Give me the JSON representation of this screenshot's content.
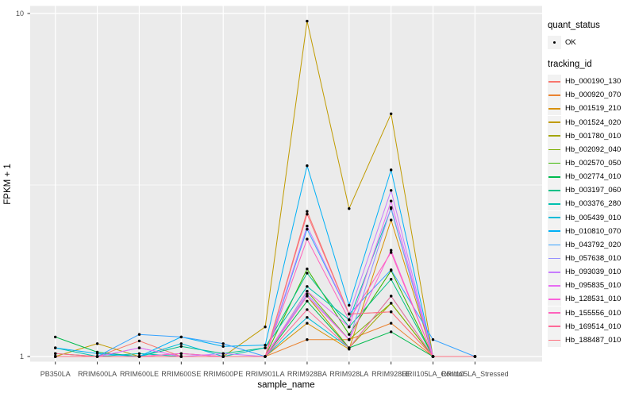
{
  "chart_data": {
    "type": "line",
    "title": "",
    "xlabel": "sample_name",
    "ylabel": "FPKM + 1",
    "yscale": "log10",
    "ylim": [
      1,
      10
    ],
    "y_ticks": [
      {
        "value": 10,
        "label": "10"
      },
      {
        "value": 1,
        "label": "1"
      }
    ],
    "y_minor_ticks": [
      3.1623
    ],
    "grid": "on",
    "legend": {
      "position": "right",
      "quant_status_title": "quant_status",
      "quant_status_items": [
        {
          "label": "OK",
          "symbol": "point"
        }
      ],
      "tracking_id_title": "tracking_id"
    },
    "style": {
      "panel_bg": "#EBEBEB",
      "grid_color": "#FFFFFF",
      "tick_label_color": "#4D4D4D",
      "axis_title_color": "#000000",
      "point_color": "#000000",
      "legend_key_bg": "#F2F2F2"
    },
    "categories": [
      "PB350LA",
      "RRIM600LA",
      "RRIM600LE",
      "RRIM600SE",
      "RRIM600PE",
      "RRIM901LA",
      "RRIM928BA",
      "RRIM928LA",
      "RRIM928LE",
      "RRII105LA_Control",
      "RRII105LA_Stressed"
    ],
    "series": [
      {
        "name": "Hb_000190_130",
        "color": "#F8766D",
        "values": [
          1.0,
          1.0,
          1.11,
          1.0,
          1.0,
          1.0,
          2.65,
          1.33,
          1.35,
          1.0,
          1.0
        ]
      },
      {
        "name": "Hb_000920_070",
        "color": "#EA8331",
        "values": [
          1.0,
          1.0,
          1.0,
          1.0,
          1.0,
          1.0,
          1.12,
          1.12,
          1.25,
          1.0,
          1.0
        ]
      },
      {
        "name": "Hb_001519_210",
        "color": "#D89000",
        "values": [
          1.0,
          1.0,
          1.0,
          1.0,
          1.0,
          1.0,
          1.25,
          1.05,
          2.5,
          1.0,
          1.0
        ]
      },
      {
        "name": "Hb_001524_020",
        "color": "#C09B00",
        "values": [
          1.0,
          1.09,
          1.0,
          1.0,
          1.0,
          1.22,
          9.5,
          2.7,
          5.1,
          1.0,
          1.0
        ]
      },
      {
        "name": "Hb_001780_010",
        "color": "#A3A500",
        "values": [
          1.0,
          1.0,
          1.0,
          1.0,
          1.0,
          1.0,
          1.5,
          1.06,
          1.43,
          1.0,
          1.0
        ]
      },
      {
        "name": "Hb_002092_040",
        "color": "#7CAE00",
        "values": [
          1.0,
          1.0,
          1.0,
          1.02,
          1.0,
          1.0,
          1.55,
          1.12,
          1.43,
          1.0,
          1.0
        ]
      },
      {
        "name": "Hb_002570_050",
        "color": "#39B600",
        "values": [
          1.02,
          1.0,
          1.0,
          1.0,
          1.0,
          1.0,
          1.8,
          1.16,
          1.78,
          1.0,
          1.0
        ]
      },
      {
        "name": "Hb_002774_010",
        "color": "#00BB4E",
        "values": [
          1.14,
          1.03,
          1.0,
          1.0,
          1.0,
          1.0,
          1.45,
          1.06,
          1.18,
          1.0,
          1.0
        ]
      },
      {
        "name": "Hb_003197_060",
        "color": "#00C087",
        "values": [
          1.0,
          1.0,
          1.0,
          1.07,
          1.02,
          1.06,
          1.75,
          1.22,
          1.68,
          1.0,
          1.0
        ]
      },
      {
        "name": "Hb_003376_280",
        "color": "#00C0AF",
        "values": [
          1.06,
          1.0,
          1.02,
          1.0,
          1.0,
          1.06,
          1.6,
          1.28,
          2.7,
          1.0,
          1.0
        ]
      },
      {
        "name": "Hb_005439_010",
        "color": "#00BCD8",
        "values": [
          1.0,
          1.0,
          1.0,
          1.09,
          1.0,
          1.0,
          1.3,
          1.06,
          1.5,
          1.0,
          1.0
        ]
      },
      {
        "name": "Hb_010810_070",
        "color": "#00B0F6",
        "values": [
          1.06,
          1.02,
          1.0,
          1.14,
          1.07,
          1.08,
          3.6,
          1.41,
          3.5,
          1.0,
          1.0
        ]
      },
      {
        "name": "Hb_043792_020",
        "color": "#35A2FF",
        "values": [
          1.0,
          1.0,
          1.16,
          1.14,
          1.09,
          1.0,
          2.35,
          1.33,
          1.79,
          1.12,
          1.0
        ]
      },
      {
        "name": "Hb_057638_010",
        "color": "#9590FF",
        "values": [
          1.0,
          1.0,
          1.06,
          1.0,
          1.0,
          1.0,
          1.52,
          1.12,
          2.72,
          1.0,
          1.0
        ]
      },
      {
        "name": "Hb_093039_010",
        "color": "#C77CFF",
        "values": [
          1.0,
          1.0,
          1.0,
          1.0,
          1.02,
          1.0,
          2.4,
          1.33,
          3.05,
          1.0,
          1.0
        ]
      },
      {
        "name": "Hb_095835_010",
        "color": "#E76BF3",
        "values": [
          1.0,
          1.0,
          1.06,
          1.0,
          1.0,
          1.0,
          1.55,
          1.22,
          2.84,
          1.0,
          1.0
        ]
      },
      {
        "name": "Hb_128531_010",
        "color": "#FA62DB",
        "values": [
          1.0,
          1.0,
          1.0,
          1.02,
          1.0,
          1.0,
          1.5,
          1.12,
          2.04,
          1.0,
          1.0
        ]
      },
      {
        "name": "Hb_155556_010",
        "color": "#FF62BC",
        "values": [
          1.0,
          1.0,
          1.0,
          1.0,
          1.0,
          1.0,
          2.2,
          1.28,
          2.01,
          1.0,
          1.0
        ]
      },
      {
        "name": "Hb_169514_010",
        "color": "#FF6A98",
        "values": [
          1.02,
          1.0,
          1.0,
          1.0,
          1.0,
          1.0,
          1.37,
          1.06,
          1.5,
          1.0,
          1.0
        ]
      },
      {
        "name": "Hb_188487_010",
        "color": "#FC717F",
        "values": [
          1.0,
          1.0,
          1.0,
          1.0,
          1.0,
          1.0,
          2.6,
          1.33,
          1.35,
          1.0,
          1.0
        ]
      }
    ]
  }
}
